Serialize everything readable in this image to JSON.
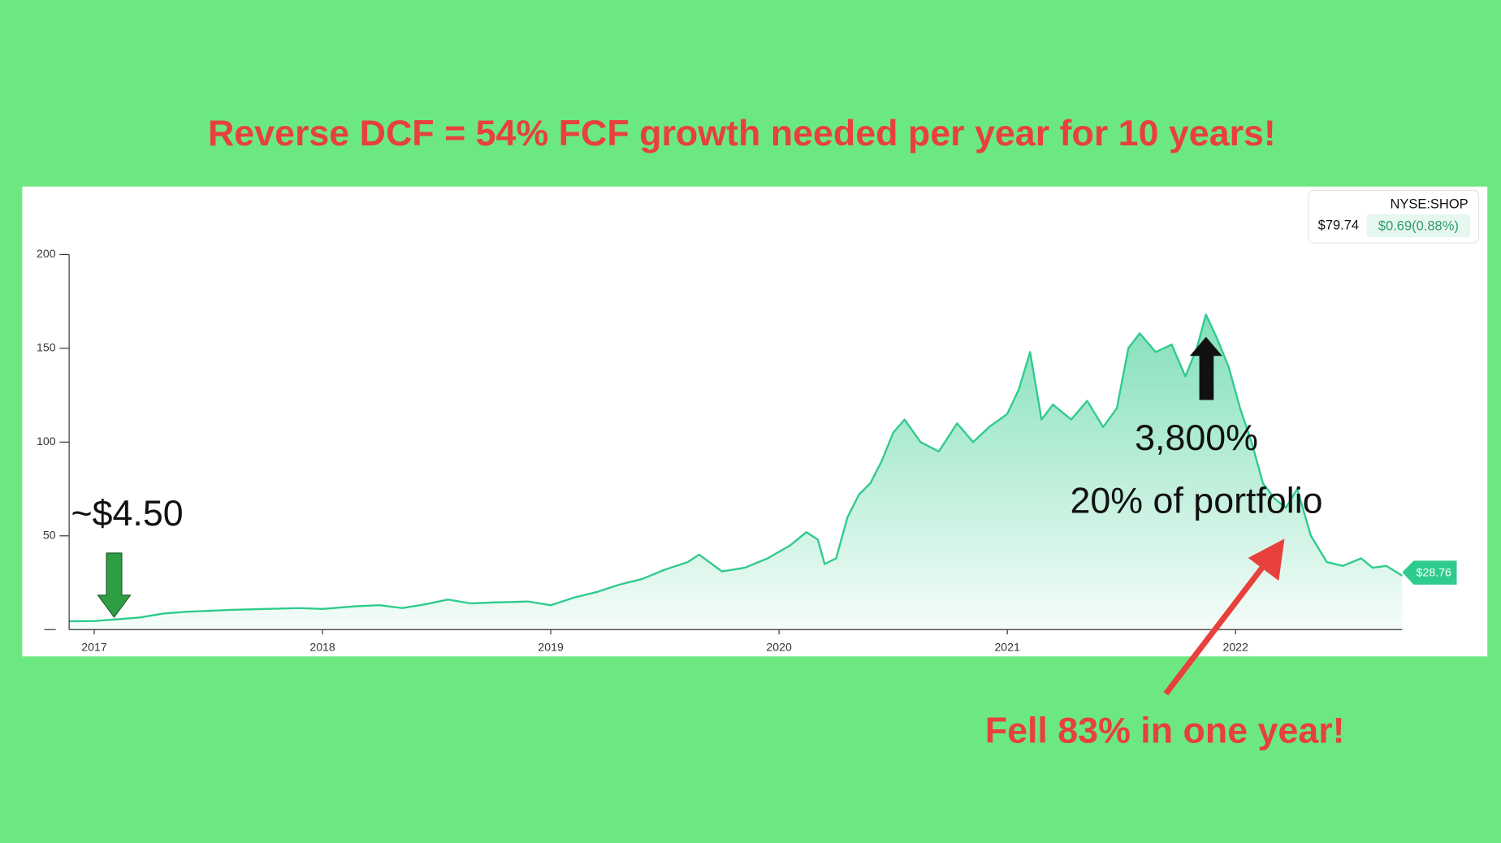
{
  "chart_data": {
    "type": "area",
    "title": "Reverse DCF = 54% FCF growth needed per year for 10 years!",
    "ticker": "NYSE:SHOP",
    "quote_price": "$79.74",
    "quote_change": "$0.69(0.88%)",
    "last_label": "$28.76",
    "annotations": [
      "~$4.50",
      "3,800%",
      "20% of portfolio",
      "Fell 83% in one year!"
    ],
    "color": "#2fcb8c",
    "xlim": [
      2016.89,
      2022.73
    ],
    "xticks": [
      2017,
      2018,
      2019,
      2020,
      2021,
      2022
    ],
    "ylim": [
      0,
      200
    ],
    "yticks": [
      50,
      100,
      150,
      200
    ],
    "x": [
      2016.89,
      2017.0,
      2017.1,
      2017.2,
      2017.3,
      2017.4,
      2017.5,
      2017.6,
      2017.75,
      2017.9,
      2018.0,
      2018.15,
      2018.25,
      2018.35,
      2018.45,
      2018.55,
      2018.65,
      2018.75,
      2018.9,
      2019.0,
      2019.1,
      2019.2,
      2019.3,
      2019.4,
      2019.5,
      2019.6,
      2019.65,
      2019.75,
      2019.85,
      2019.95,
      2020.05,
      2020.12,
      2020.17,
      2020.2,
      2020.25,
      2020.3,
      2020.35,
      2020.4,
      2020.45,
      2020.5,
      2020.55,
      2020.62,
      2020.7,
      2020.78,
      2020.85,
      2020.92,
      2021.0,
      2021.05,
      2021.1,
      2021.15,
      2021.2,
      2021.28,
      2021.35,
      2021.42,
      2021.48,
      2021.53,
      2021.58,
      2021.65,
      2021.72,
      2021.78,
      2021.83,
      2021.87,
      2021.92,
      2021.97,
      2022.02,
      2022.07,
      2022.12,
      2022.17,
      2022.22,
      2022.27,
      2022.33,
      2022.4,
      2022.47,
      2022.55,
      2022.6,
      2022.66,
      2022.73
    ],
    "values": [
      4.5,
      4.6,
      5.5,
      6.5,
      8.5,
      9.5,
      10,
      10.5,
      11,
      11.5,
      11,
      12.5,
      13,
      11.5,
      13.5,
      16,
      14,
      14.5,
      15,
      13,
      17,
      20,
      24,
      27,
      32,
      36,
      40,
      31,
      33,
      38,
      45,
      52,
      48,
      35,
      38,
      60,
      72,
      78,
      90,
      105,
      112,
      100,
      95,
      110,
      100,
      108,
      115,
      128,
      148,
      112,
      120,
      112,
      122,
      108,
      118,
      150,
      158,
      148,
      152,
      135,
      150,
      168,
      155,
      140,
      118,
      100,
      78,
      70,
      65,
      75,
      50,
      36,
      34,
      38,
      33,
      34,
      28.76
    ]
  }
}
